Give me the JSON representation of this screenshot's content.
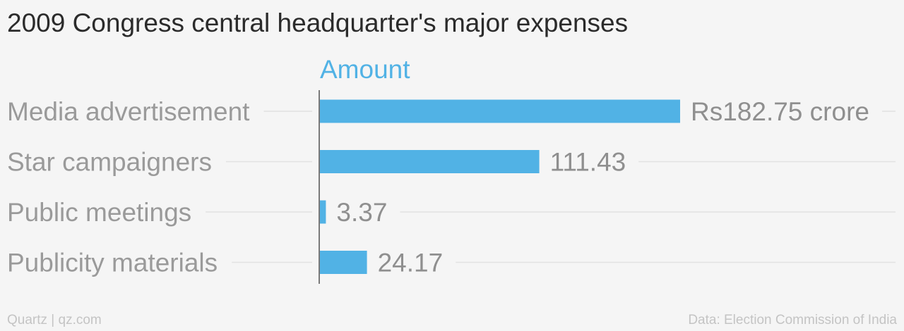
{
  "chart_data": {
    "type": "bar",
    "orientation": "horizontal",
    "title": "2009 Congress central headquarter's major expenses",
    "series_name": "Amount",
    "categories": [
      "Media advertisement",
      "Star campaigners",
      "Public meetings",
      "Publicity materials"
    ],
    "values": [
      182.75,
      111.43,
      3.37,
      24.17
    ],
    "value_labels": [
      "Rs182.75 crore",
      "111.43",
      "3.37",
      "24.17"
    ],
    "unit": "Rs crore",
    "xlim": [
      0,
      182.75
    ],
    "grid": false,
    "colors": {
      "bar": "#51b2e5",
      "series_label": "#51b2e5",
      "axis": "#7a7a7a",
      "guide": "#e2e2e2"
    }
  },
  "footer": {
    "source_left": "Quartz | qz.com",
    "source_right": "Data: Election Commission of India"
  }
}
